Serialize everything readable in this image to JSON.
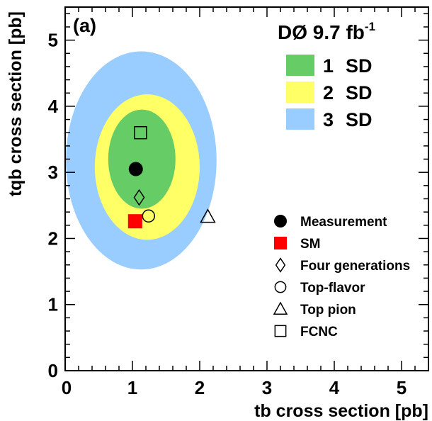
{
  "chart_data": {
    "type": "scatter",
    "panel_label": "(a)",
    "experiment": "DØ 9.7 fb",
    "experiment_sup": "-1",
    "xlabel": "tb cross section [pb]",
    "ylabel": "tqb cross section [pb]",
    "xlim": [
      0,
      5.4
    ],
    "ylim": [
      0,
      5.5
    ],
    "xticks": [
      "0",
      "1",
      "2",
      "3",
      "4",
      "5"
    ],
    "yticks": [
      "0",
      "1",
      "2",
      "3",
      "4",
      "5"
    ],
    "contours": [
      {
        "name": "3 SD",
        "color": "#99ccff",
        "center": [
          1.13,
          3.18
        ],
        "rx": 1.12,
        "ry": 1.65
      },
      {
        "name": "2 SD",
        "color": "#ffff66",
        "center": [
          1.22,
          3.08
        ],
        "rx": 0.78,
        "ry": 1.1
      },
      {
        "name": "1 SD",
        "color": "#66cc66",
        "center": [
          1.14,
          3.2
        ],
        "rx": 0.5,
        "ry": 0.75
      }
    ],
    "contour_legend": [
      {
        "label_num": "1",
        "label_txt": "SD",
        "color": "#66cc66"
      },
      {
        "label_num": "2",
        "label_txt": "SD",
        "color": "#ffff66"
      },
      {
        "label_num": "3",
        "label_txt": "SD",
        "color": "#99ccff"
      }
    ],
    "points": [
      {
        "name": "Measurement",
        "marker": "filled-circle",
        "x": 1.05,
        "y": 3.05
      },
      {
        "name": "SM",
        "marker": "filled-square",
        "x": 1.04,
        "y": 2.26,
        "color": "#ff0000"
      },
      {
        "name": "Four generations",
        "marker": "open-diamond",
        "x": 1.1,
        "y": 2.62
      },
      {
        "name": "Top-flavor",
        "marker": "open-circle",
        "x": 1.24,
        "y": 2.34
      },
      {
        "name": "Top pion",
        "marker": "open-triangle",
        "x": 2.12,
        "y": 2.33
      },
      {
        "name": "FCNC",
        "marker": "open-square",
        "x": 1.12,
        "y": 3.6
      }
    ]
  }
}
